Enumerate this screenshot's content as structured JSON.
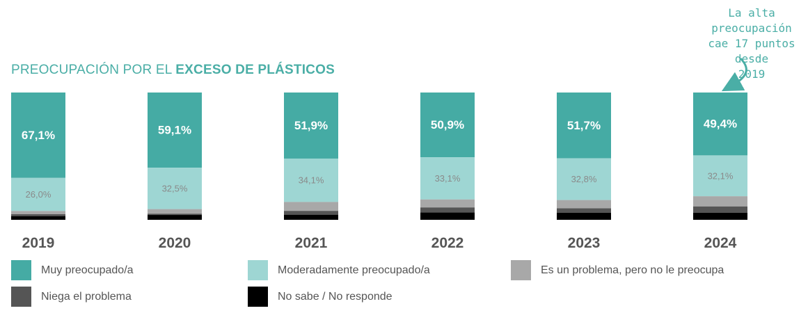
{
  "title_prefix": "PREOCUPACIÓN POR EL ",
  "title_bold": "EXCESO DE PLÁSTICOS",
  "annotation": "La alta preocupación\ncae 17 puntos desde\n2019",
  "colors": {
    "muy": "#45aba4",
    "moderado": "#9ed6d3",
    "problema": "#a8a8a8",
    "niega": "#555555",
    "nosabe": "#000000",
    "accent": "#4aaea6"
  },
  "chart_data": {
    "type": "bar",
    "stacked": true,
    "categories": [
      "2019",
      "2020",
      "2021",
      "2022",
      "2023",
      "2024"
    ],
    "series": [
      {
        "name": "Muy preocupado/a",
        "values": [
          67.1,
          59.1,
          51.9,
          50.9,
          51.7,
          49.4
        ],
        "labels": [
          "67,1%",
          "59,1%",
          "51,9%",
          "50,9%",
          "51,7%",
          "49,4%"
        ]
      },
      {
        "name": "Moderadamente preocupado/a",
        "values": [
          26.0,
          32.5,
          34.1,
          33.1,
          32.8,
          32.1
        ],
        "labels": [
          "26,0%",
          "32,5%",
          "34,1%",
          "33,1%",
          "32,8%",
          "32,1%"
        ]
      },
      {
        "name": "Es un problema, pero no le preocupa",
        "values": [
          2.5,
          3.6,
          7.0,
          6.3,
          6.5,
          8.0
        ]
      },
      {
        "name": "Niega el problema",
        "values": [
          1.5,
          1.0,
          3.0,
          4.0,
          3.5,
          5.0
        ]
      },
      {
        "name": "No sabe / No responde",
        "values": [
          2.9,
          3.8,
          4.0,
          5.7,
          5.5,
          5.5
        ]
      }
    ],
    "ylim": [
      0,
      100
    ],
    "legend_position": "bottom"
  }
}
